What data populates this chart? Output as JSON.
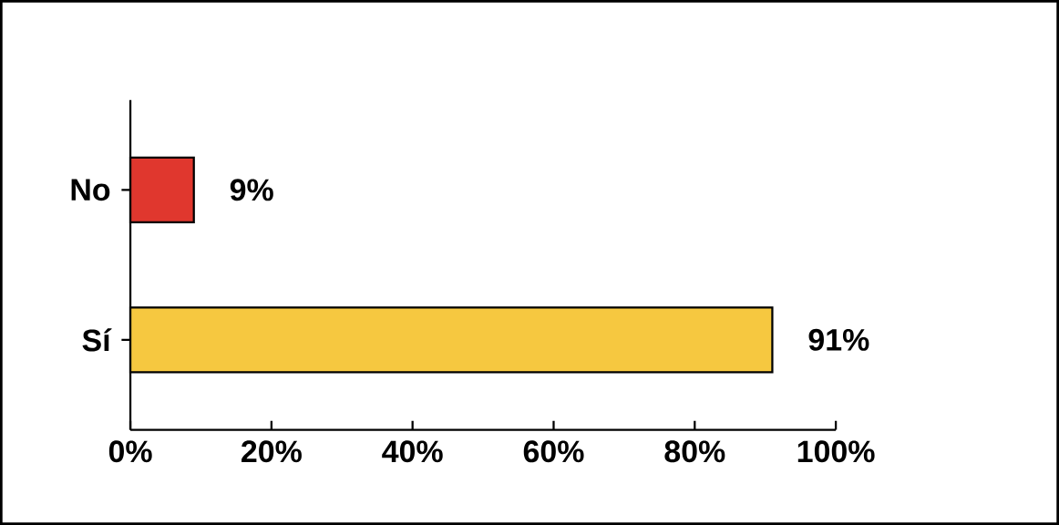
{
  "chart_data": {
    "type": "bar",
    "orientation": "horizontal",
    "categories": [
      "No",
      "Sí"
    ],
    "values": [
      9,
      91
    ],
    "colors": [
      "#e0372e",
      "#f6c840"
    ],
    "value_labels": [
      "9%",
      "91%"
    ],
    "xlim": [
      0,
      100
    ],
    "xticks": [
      {
        "value": 0,
        "label": "0%"
      },
      {
        "value": 20,
        "label": "20%"
      },
      {
        "value": 40,
        "label": "40%"
      },
      {
        "value": 60,
        "label": "60%"
      },
      {
        "value": 80,
        "label": "80%"
      },
      {
        "value": 100,
        "label": "100%"
      }
    ]
  }
}
